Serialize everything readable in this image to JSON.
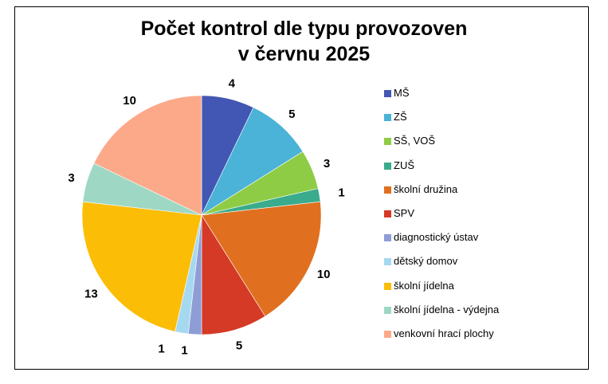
{
  "chart_data": {
    "type": "pie",
    "title_lines": [
      "Počet kontrol dle typu provozoven",
      "v červnu 2025"
    ],
    "categories": [
      "MŠ",
      "ZŠ",
      "SŠ, VOŠ",
      "ZUŠ",
      "školní družina",
      "SPV",
      "diagnostický ústav",
      "dětský domov",
      "školní jídelna",
      "školní jídelna - výdejna",
      "venkovní hrací plochy"
    ],
    "values": [
      4,
      5,
      3,
      1,
      10,
      5,
      1,
      1,
      13,
      3,
      10
    ],
    "colors": [
      "#4257b3",
      "#4bb2d8",
      "#8fcc45",
      "#3aab8c",
      "#e0701f",
      "#d43a25",
      "#8f9dd6",
      "#a6d9f0",
      "#fcbd06",
      "#9ed8c4",
      "#fca98a"
    ],
    "legend_position": "right"
  }
}
